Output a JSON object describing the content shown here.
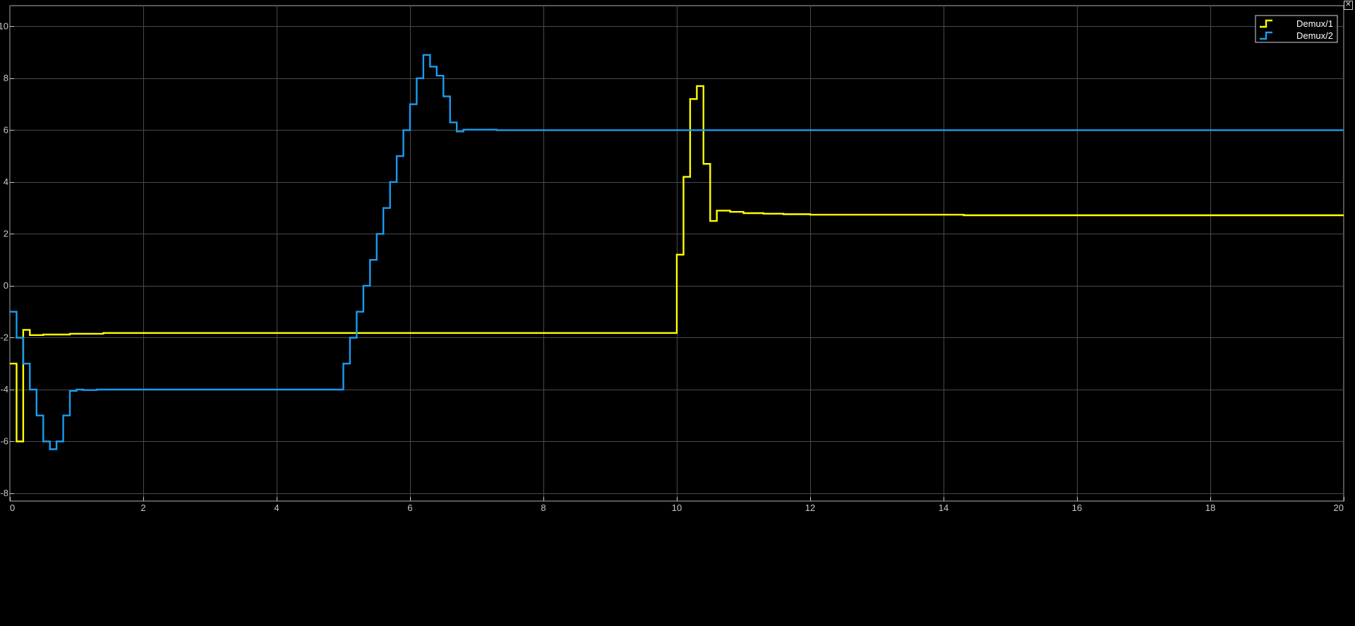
{
  "chart_data": {
    "type": "line",
    "step": true,
    "title": "",
    "xlabel": "",
    "ylabel": "",
    "xlim": [
      0,
      20
    ],
    "ylim": [
      -8.3,
      10.8
    ],
    "x_ticks": [
      0,
      2,
      4,
      6,
      8,
      10,
      12,
      14,
      16,
      18,
      20
    ],
    "y_ticks": [
      -8,
      -6,
      -4,
      -2,
      0,
      2,
      4,
      6,
      8,
      10
    ],
    "x_tick_labels": [
      "0",
      "2",
      "4",
      "6",
      "8",
      "10",
      "12",
      "14",
      "16",
      "18",
      "20"
    ],
    "y_tick_labels": [
      "-8",
      "-6",
      "-4",
      "-2",
      "0",
      "2",
      "4",
      "6",
      "8",
      "10"
    ],
    "grid": true,
    "legend_position": "top-right",
    "series": [
      {
        "name": "Demux/1",
        "color": "#ffff00",
        "points": [
          [
            0,
            -3
          ],
          [
            0.1,
            -3
          ],
          [
            0.1,
            -6
          ],
          [
            0.2,
            -6
          ],
          [
            0.2,
            -1.7
          ],
          [
            0.3,
            -1.7
          ],
          [
            0.3,
            -1.9
          ],
          [
            0.5,
            -1.9
          ],
          [
            0.5,
            -1.88
          ],
          [
            0.9,
            -1.88
          ],
          [
            0.9,
            -1.85
          ],
          [
            1.4,
            -1.85
          ],
          [
            1.4,
            -1.82
          ],
          [
            10.0,
            -1.82
          ],
          [
            10.0,
            1.2
          ],
          [
            10.1,
            1.2
          ],
          [
            10.1,
            4.2
          ],
          [
            10.2,
            4.2
          ],
          [
            10.2,
            7.2
          ],
          [
            10.3,
            7.2
          ],
          [
            10.3,
            7.7
          ],
          [
            10.4,
            7.7
          ],
          [
            10.4,
            4.7
          ],
          [
            10.5,
            4.7
          ],
          [
            10.5,
            2.5
          ],
          [
            10.6,
            2.5
          ],
          [
            10.6,
            2.9
          ],
          [
            10.8,
            2.9
          ],
          [
            10.8,
            2.85
          ],
          [
            11.0,
            2.85
          ],
          [
            11.0,
            2.8
          ],
          [
            11.3,
            2.8
          ],
          [
            11.3,
            2.78
          ],
          [
            11.6,
            2.78
          ],
          [
            11.6,
            2.76
          ],
          [
            12.0,
            2.76
          ],
          [
            12.0,
            2.74
          ],
          [
            14.3,
            2.74
          ],
          [
            14.3,
            2.72
          ],
          [
            20,
            2.72
          ]
        ]
      },
      {
        "name": "Demux/2",
        "color": "#1a9cf0",
        "points": [
          [
            0,
            -1
          ],
          [
            0.1,
            -1
          ],
          [
            0.1,
            -2
          ],
          [
            0.2,
            -2
          ],
          [
            0.2,
            -3
          ],
          [
            0.3,
            -3
          ],
          [
            0.3,
            -4
          ],
          [
            0.4,
            -4
          ],
          [
            0.4,
            -5
          ],
          [
            0.5,
            -5
          ],
          [
            0.5,
            -6
          ],
          [
            0.6,
            -6
          ],
          [
            0.6,
            -6.3
          ],
          [
            0.7,
            -6.3
          ],
          [
            0.7,
            -6
          ],
          [
            0.8,
            -6
          ],
          [
            0.8,
            -5
          ],
          [
            0.9,
            -5
          ],
          [
            0.9,
            -4.05
          ],
          [
            1.0,
            -4.05
          ],
          [
            1.0,
            -4.0
          ],
          [
            1.1,
            -4.0
          ],
          [
            1.1,
            -4.02
          ],
          [
            1.3,
            -4.02
          ],
          [
            1.3,
            -4.0
          ],
          [
            5.0,
            -4.0
          ],
          [
            5.0,
            -3
          ],
          [
            5.1,
            -3
          ],
          [
            5.1,
            -2
          ],
          [
            5.2,
            -2
          ],
          [
            5.2,
            -1
          ],
          [
            5.3,
            -1
          ],
          [
            5.3,
            0
          ],
          [
            5.4,
            0
          ],
          [
            5.4,
            1
          ],
          [
            5.5,
            1
          ],
          [
            5.5,
            2
          ],
          [
            5.6,
            2
          ],
          [
            5.6,
            3
          ],
          [
            5.7,
            3
          ],
          [
            5.7,
            4
          ],
          [
            5.8,
            4
          ],
          [
            5.8,
            5
          ],
          [
            5.9,
            5
          ],
          [
            5.9,
            6
          ],
          [
            6.0,
            6
          ],
          [
            6.0,
            7
          ],
          [
            6.1,
            7
          ],
          [
            6.1,
            8
          ],
          [
            6.2,
            8
          ],
          [
            6.2,
            8.9
          ],
          [
            6.3,
            8.9
          ],
          [
            6.3,
            8.45
          ],
          [
            6.4,
            8.45
          ],
          [
            6.4,
            8.1
          ],
          [
            6.5,
            8.1
          ],
          [
            6.5,
            7.3
          ],
          [
            6.6,
            7.3
          ],
          [
            6.6,
            6.3
          ],
          [
            6.7,
            6.3
          ],
          [
            6.7,
            5.95
          ],
          [
            6.8,
            5.95
          ],
          [
            6.8,
            6.02
          ],
          [
            7.3,
            6.02
          ],
          [
            7.3,
            6.0
          ],
          [
            20,
            6.0
          ]
        ]
      }
    ]
  },
  "window": {
    "close_glyph": "✕"
  }
}
